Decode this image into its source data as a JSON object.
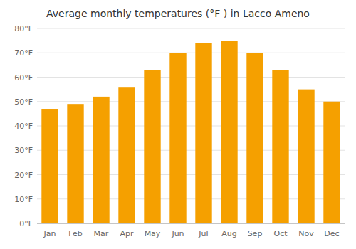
{
  "chart_data": {
    "type": "bar",
    "title": "Average monthly temperatures (°F ) in Lacco Ameno",
    "categories": [
      "Jan",
      "Feb",
      "Mar",
      "Apr",
      "May",
      "Jun",
      "Jul",
      "Aug",
      "Sep",
      "Oct",
      "Nov",
      "Dec"
    ],
    "values": [
      47,
      49,
      52,
      56,
      63,
      70,
      74,
      75,
      70,
      63,
      55,
      50
    ],
    "color": "#F5A000",
    "ylim": [
      0,
      80
    ],
    "yticks": [
      {
        "value": 0,
        "label": "0°F"
      },
      {
        "value": 10,
        "label": "10°F"
      },
      {
        "value": 20,
        "label": "20°F"
      },
      {
        "value": 30,
        "label": "30°F"
      },
      {
        "value": 40,
        "label": "40°F"
      },
      {
        "value": 50,
        "label": "50°F"
      },
      {
        "value": 60,
        "label": "60°F"
      },
      {
        "value": 70,
        "label": "70°F"
      },
      {
        "value": 80,
        "label": "80°F"
      }
    ],
    "grid": true
  }
}
